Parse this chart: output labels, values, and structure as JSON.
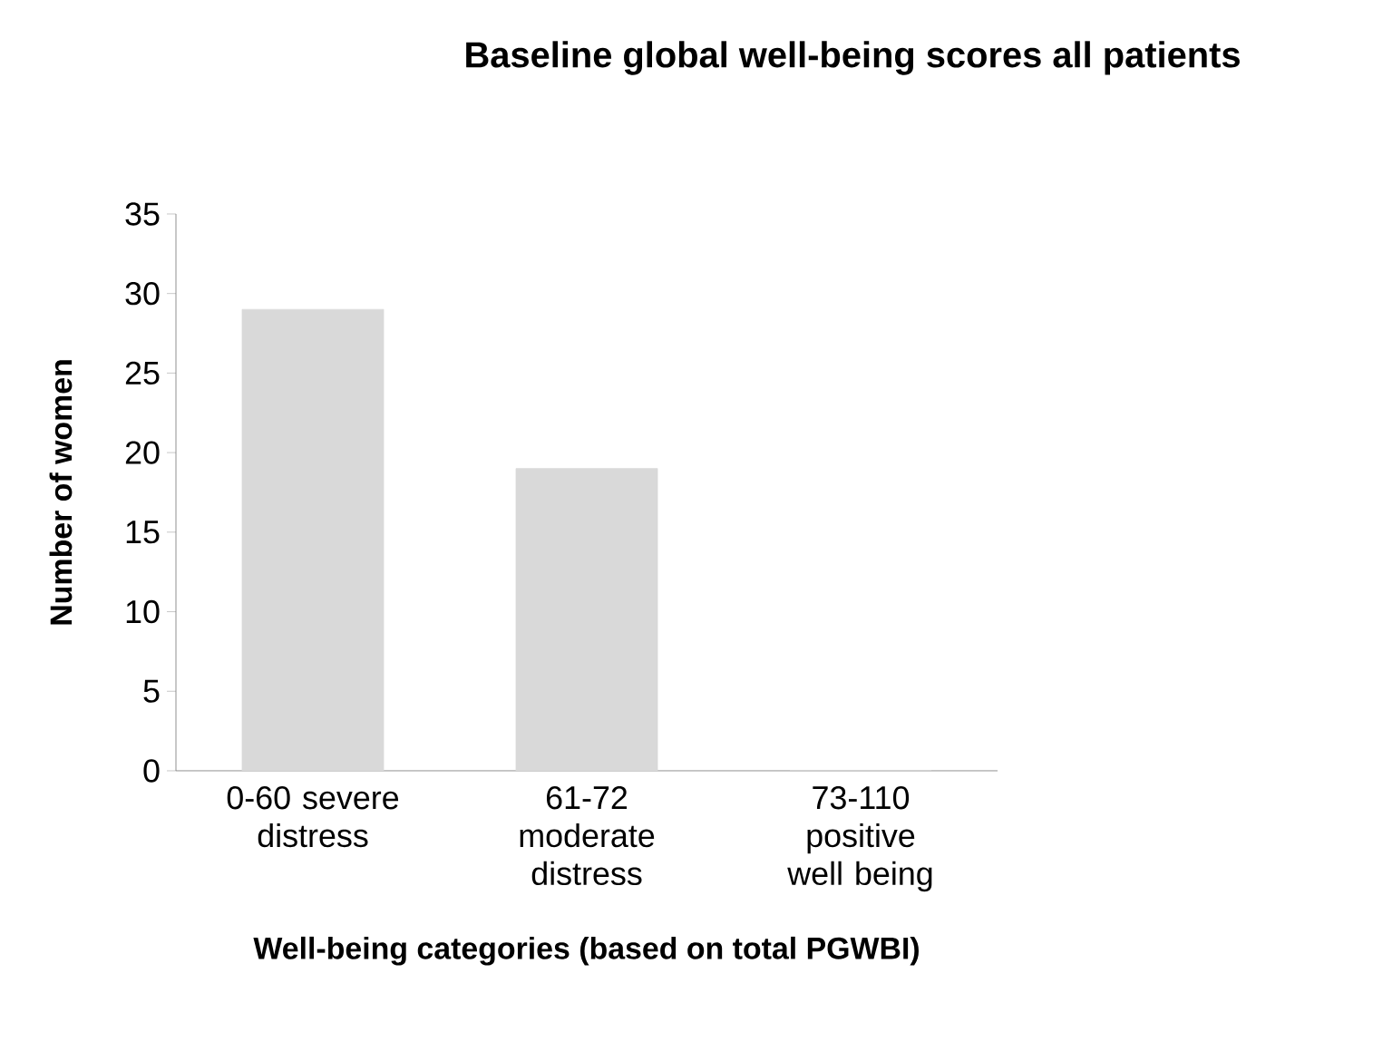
{
  "chart_data": {
    "type": "bar",
    "title": "Baseline global well-being scores all patients",
    "xlabel": "Well-being categories (based on total PGWBI)",
    "ylabel": "Number of women",
    "categories": [
      "0-60 severe distress",
      "61-72 moderate distress",
      "73-110 positive well being"
    ],
    "values": [
      29,
      19,
      0
    ],
    "color": "#d9d9d9",
    "ylim": [
      0,
      35
    ],
    "yticks": [
      0,
      5,
      10,
      15,
      20,
      25,
      30,
      35
    ],
    "grid": false
  }
}
